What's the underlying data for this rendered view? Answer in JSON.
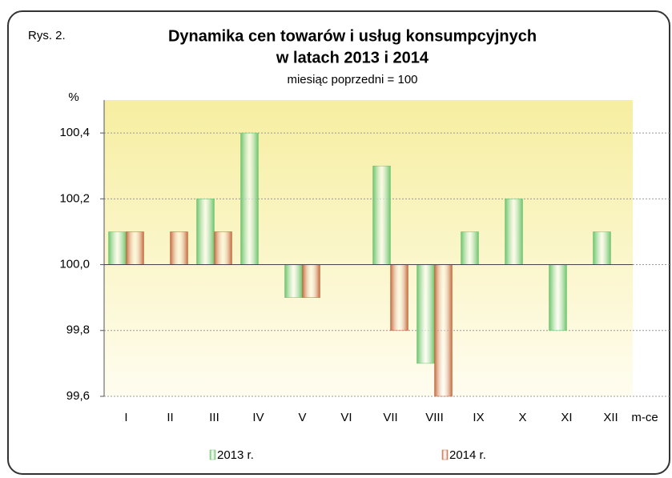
{
  "chart_data": {
    "type": "bar",
    "title": [
      "Dynamika cen towarów i usług konsumpcyjnych",
      "w latach 2013 i 2014"
    ],
    "subtitle": "miesiąc poprzedni = 100",
    "annotation": "Rys. 2.",
    "y_label": "%",
    "x_label": "m-ce",
    "categories": [
      "I",
      "II",
      "III",
      "IV",
      "V",
      "VI",
      "VII",
      "VIII",
      "IX",
      "X",
      "XI",
      "XII"
    ],
    "series": [
      {
        "name": "2013 r.",
        "color": "#6cc46c",
        "values": [
          100.1,
          100.0,
          100.2,
          100.4,
          99.9,
          100.0,
          100.3,
          99.7,
          100.1,
          100.2,
          99.8,
          100.1
        ]
      },
      {
        "name": "2014 r.",
        "color": "#c4683a",
        "values": [
          100.1,
          100.1,
          100.1,
          100.0,
          99.9,
          100.0,
          99.8,
          99.6,
          null,
          null,
          null,
          null
        ]
      }
    ],
    "ylim": [
      99.6,
      100.5
    ],
    "yticks": [
      {
        "value": 99.6,
        "label": "99,6"
      },
      {
        "value": 99.8,
        "label": "99,8"
      },
      {
        "value": 100.0,
        "label": "100,0"
      },
      {
        "value": 100.2,
        "label": "100,2"
      },
      {
        "value": 100.4,
        "label": "100,4"
      }
    ],
    "baseline": 100.0,
    "grid": true
  }
}
